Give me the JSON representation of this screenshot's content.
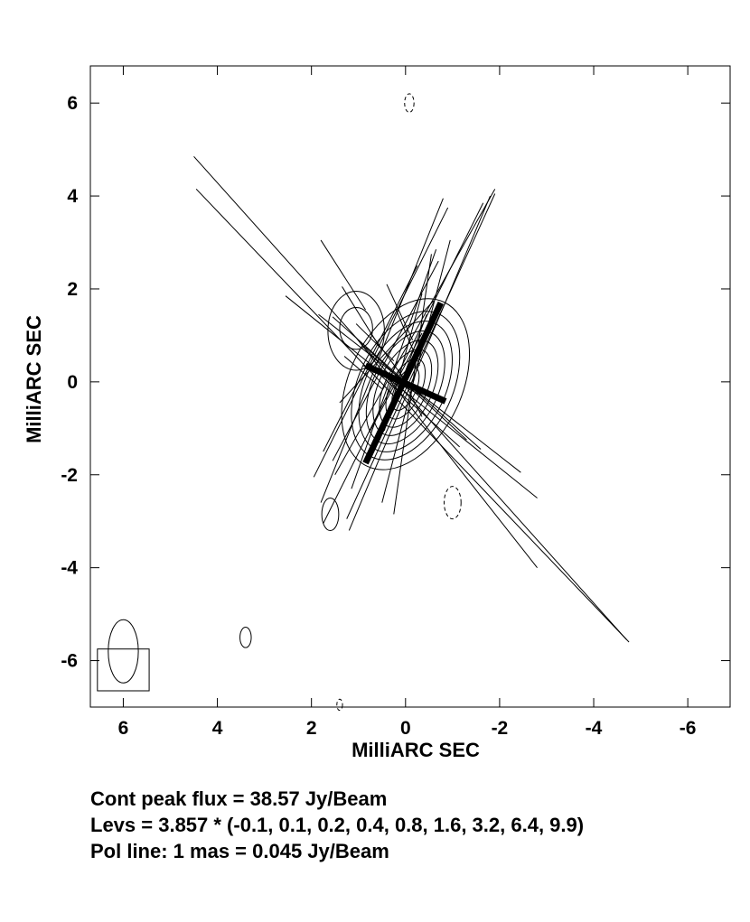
{
  "chart_data": {
    "type": "contour",
    "xlabel": "MilliARC SEC",
    "ylabel": "MilliARC SEC",
    "xlim": [
      6.7,
      -6.9
    ],
    "ylim": [
      -7.0,
      6.8
    ],
    "x_ticks": [
      6,
      4,
      2,
      0,
      -2,
      -4,
      -6
    ],
    "y_ticks": [
      6,
      4,
      2,
      0,
      -2,
      -4,
      -6
    ],
    "x_tick_labels": [
      "6",
      "4",
      "2",
      "0",
      "-2",
      "-4",
      "-6"
    ],
    "y_tick_labels": [
      "6",
      "4",
      "2",
      "0",
      "-2",
      "-4",
      "-6"
    ],
    "contour_multiplier": 3.857,
    "contour_levels": [
      -0.1,
      0.1,
      0.2,
      0.4,
      0.8,
      1.6,
      3.2,
      6.4,
      9.9
    ],
    "peak_flux_jy_per_beam": 38.57,
    "pol_line_scale_jy_per_beam_per_mas": 0.045,
    "core": {
      "x": 0.0,
      "y": 0.0
    },
    "core_contours": [
      {
        "level": 0.1,
        "x": 0.0,
        "y": -0.05,
        "a": 1.95,
        "b": 1.2,
        "pa_deg": 25
      },
      {
        "level": 0.2,
        "x": 0.0,
        "y": -0.08,
        "a": 1.7,
        "b": 1.0,
        "pa_deg": 25
      },
      {
        "level": 0.4,
        "x": 0.0,
        "y": -0.1,
        "a": 1.5,
        "b": 0.85,
        "pa_deg": 25
      },
      {
        "level": 0.8,
        "x": 0.0,
        "y": -0.12,
        "a": 1.3,
        "b": 0.7,
        "pa_deg": 25
      },
      {
        "level": 1.6,
        "x": 0.0,
        "y": -0.13,
        "a": 1.1,
        "b": 0.57,
        "pa_deg": 25
      },
      {
        "level": 3.2,
        "x": 0.0,
        "y": -0.14,
        "a": 0.9,
        "b": 0.45,
        "pa_deg": 25
      },
      {
        "level": 6.4,
        "x": 0.0,
        "y": -0.15,
        "a": 0.7,
        "b": 0.33,
        "pa_deg": 25
      },
      {
        "level": 9.9,
        "x": 0.0,
        "y": -0.15,
        "a": 0.5,
        "b": 0.22,
        "pa_deg": 25
      }
    ],
    "secondary_contours": [
      {
        "level": 0.1,
        "x": 1.05,
        "y": 1.1,
        "a": 0.85,
        "b": 0.6,
        "pa_deg": 0,
        "style": "solid"
      },
      {
        "level": 0.2,
        "x": 1.05,
        "y": 1.15,
        "a": 0.45,
        "b": 0.35,
        "pa_deg": 0,
        "style": "solid"
      },
      {
        "level": 0.1,
        "x": 1.6,
        "y": -2.85,
        "a": 0.35,
        "b": 0.18,
        "pa_deg": 0,
        "style": "solid"
      },
      {
        "level": 0.1,
        "x": 3.4,
        "y": -5.5,
        "a": 0.22,
        "b": 0.12,
        "pa_deg": 0,
        "style": "solid"
      },
      {
        "level": -0.1,
        "x": -1.0,
        "y": -2.6,
        "a": 0.35,
        "b": 0.18,
        "pa_deg": 0,
        "style": "dashed"
      },
      {
        "level": -0.1,
        "x": -0.08,
        "y": 6.0,
        "a": 0.2,
        "b": 0.1,
        "pa_deg": 0,
        "style": "dashed"
      },
      {
        "level": -0.1,
        "x": 1.4,
        "y": -6.95,
        "a": 0.12,
        "b": 0.06,
        "pa_deg": 0,
        "style": "dashed"
      }
    ],
    "thick_cross": [
      {
        "x1": 0.85,
        "y1": -1.75,
        "x2": -0.75,
        "y2": 1.7
      },
      {
        "x1": 0.85,
        "y1": 0.35,
        "x2": -0.85,
        "y2": -0.42
      }
    ],
    "pol_lines": [
      {
        "x1": 4.5,
        "y1": 4.85,
        "x2": -4.7,
        "y2": -5.55
      },
      {
        "x1": 4.45,
        "y1": 4.15,
        "x2": -4.75,
        "y2": -5.6
      },
      {
        "x1": 2.55,
        "y1": 1.85,
        "x2": -2.8,
        "y2": -2.5
      },
      {
        "x1": 1.85,
        "y1": 1.45,
        "x2": -2.45,
        "y2": -1.95
      },
      {
        "x1": 1.05,
        "y1": 0.95,
        "x2": -2.8,
        "y2": -4.0
      },
      {
        "x1": 1.55,
        "y1": 1.4,
        "x2": -1.6,
        "y2": -1.45
      },
      {
        "x1": 0.85,
        "y1": 0.75,
        "x2": -1.3,
        "y2": -1.25
      },
      {
        "x1": 0.65,
        "y1": 0.25,
        "x2": -1.15,
        "y2": -1.4
      },
      {
        "x1": 1.8,
        "y1": -2.6,
        "x2": -0.8,
        "y2": 3.95
      },
      {
        "x1": 1.2,
        "y1": -3.2,
        "x2": -1.8,
        "y2": 4.0
      },
      {
        "x1": 1.75,
        "y1": -3.05,
        "x2": -1.65,
        "y2": 3.85
      },
      {
        "x1": 1.5,
        "y1": -2.0,
        "x2": -1.9,
        "y2": 4.15
      },
      {
        "x1": 1.25,
        "y1": -2.95,
        "x2": -1.9,
        "y2": 4.05
      },
      {
        "x1": 1.95,
        "y1": -2.05,
        "x2": -0.9,
        "y2": 3.75
      },
      {
        "x1": 0.5,
        "y1": -2.6,
        "x2": -0.95,
        "y2": 3.05
      },
      {
        "x1": 1.75,
        "y1": -1.5,
        "x2": -0.25,
        "y2": 2.5
      },
      {
        "x1": 1.55,
        "y1": -1.7,
        "x2": -0.7,
        "y2": 2.6
      },
      {
        "x1": 0.25,
        "y1": -2.85,
        "x2": -0.55,
        "y2": 2.75
      },
      {
        "x1": 1.15,
        "y1": -2.3,
        "x2": -0.65,
        "y2": 2.85
      },
      {
        "x1": 1.4,
        "y1": -0.45,
        "x2": -0.6,
        "y2": 1.75
      },
      {
        "x1": 0.55,
        "y1": -1.25,
        "x2": -0.45,
        "y2": 1.45
      },
      {
        "x1": 0.45,
        "y1": -1.05,
        "x2": -0.35,
        "y2": 1.9
      },
      {
        "x1": 1.8,
        "y1": 3.05,
        "x2": 0.85,
        "y2": 1.55
      },
      {
        "x1": 1.35,
        "y1": 2.05,
        "x2": 0.55,
        "y2": 0.75
      },
      {
        "x1": 0.75,
        "y1": 1.05,
        "x2": 0.05,
        "y2": 0.1
      },
      {
        "x1": 0.15,
        "y1": 0.25,
        "x2": -0.35,
        "y2": -0.75
      },
      {
        "x1": 0.75,
        "y1": -1.05,
        "x2": -0.35,
        "y2": 1.05
      },
      {
        "x1": 0.9,
        "y1": 0.35,
        "x2": -0.35,
        "y2": -0.3
      },
      {
        "x1": 1.3,
        "y1": 0.55,
        "x2": 0.5,
        "y2": -0.15
      },
      {
        "x1": 1.05,
        "y1": 1.25,
        "x2": 0.25,
        "y2": 0.45
      },
      {
        "x1": 0.4,
        "y1": 2.1,
        "x2": -0.15,
        "y2": 0.9
      },
      {
        "x1": 0.2,
        "y1": 1.55,
        "x2": -0.3,
        "y2": 0.35
      }
    ],
    "beam": {
      "box": {
        "x1": 6.55,
        "y1": -5.75,
        "x2": 5.45,
        "y2": -6.65
      },
      "ellipse": {
        "x": 6.0,
        "y": -5.8,
        "a": 0.68,
        "b": 0.32,
        "pa_deg": 0
      }
    }
  },
  "captions": {
    "peak": "Cont peak flux =  38.57 Jy/Beam",
    "levs": "Levs = 3.857 * (-0.1, 0.1, 0.2, 0.4, 0.8, 1.6, 3.2, 6.4, 9.9)",
    "pol": "Pol line: 1 mas =  0.045 Jy/Beam"
  }
}
